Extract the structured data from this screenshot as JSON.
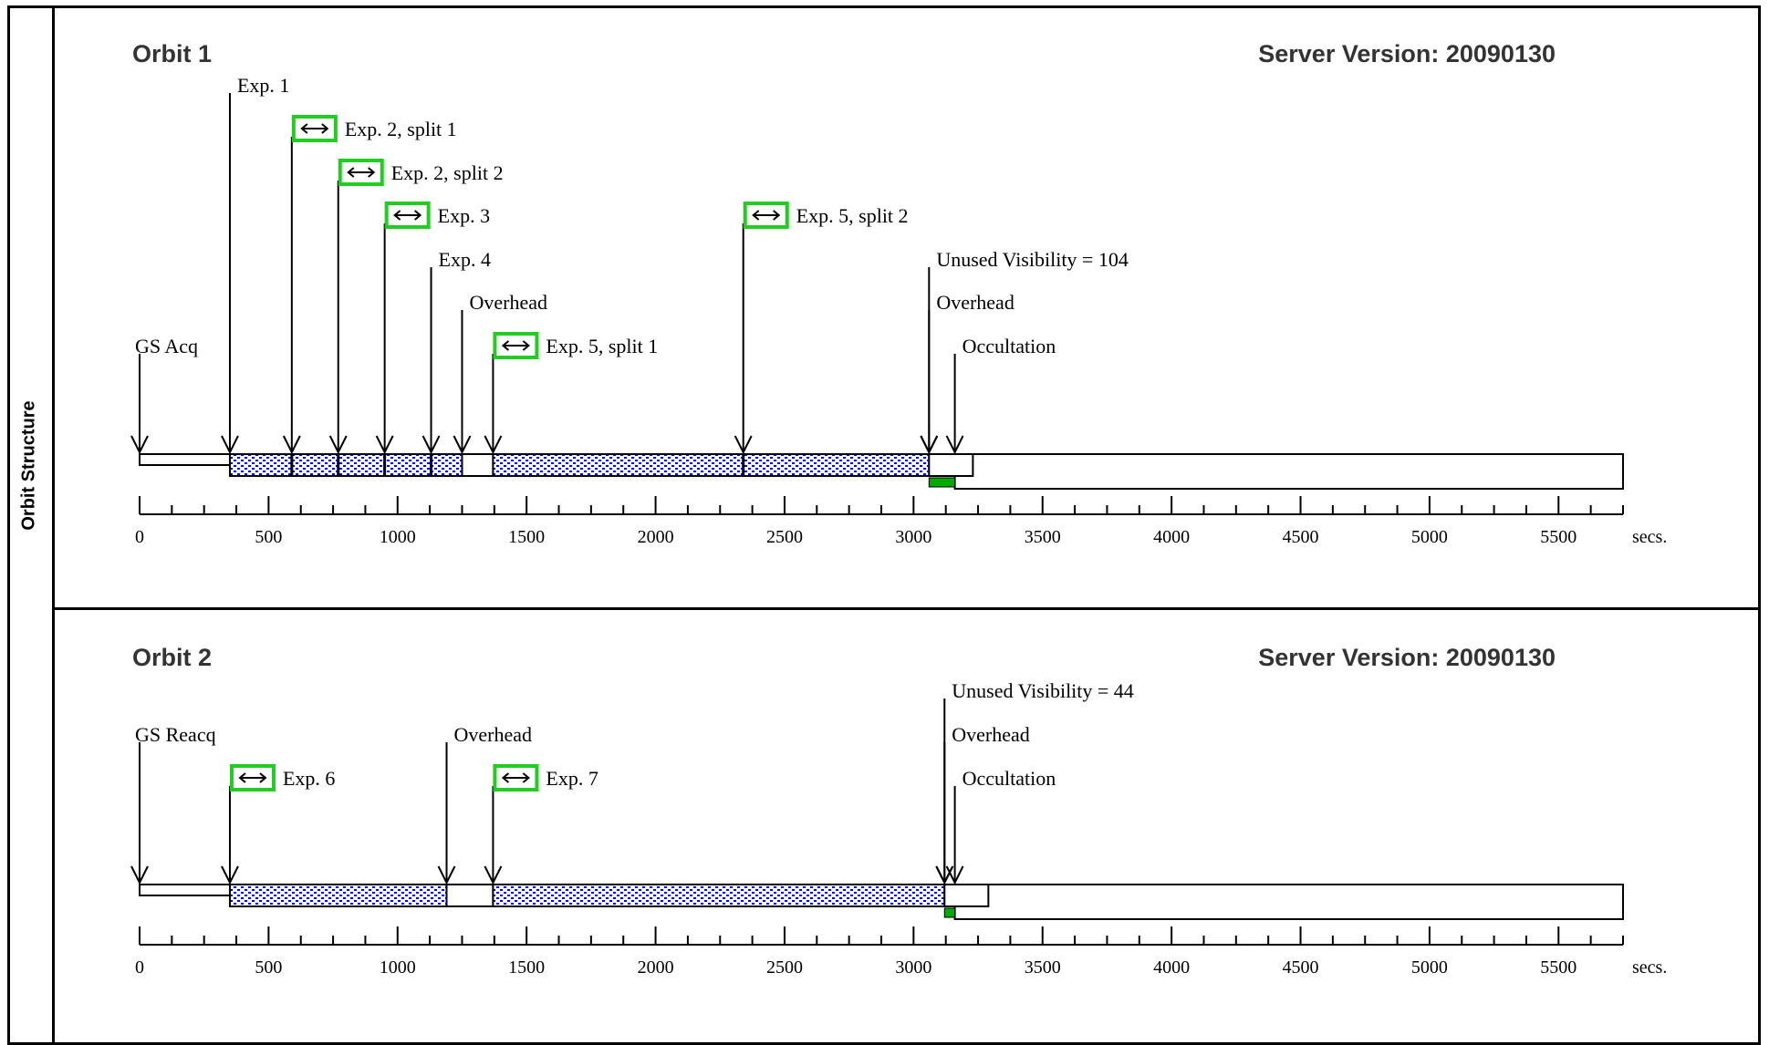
{
  "side_label": "Orbit Structure",
  "axis_unit": "secs.",
  "axis_ticks": [
    "0",
    "500",
    "1000",
    "1500",
    "2000",
    "2500",
    "3000",
    "3500",
    "4000",
    "4500",
    "5000",
    "5500"
  ],
  "colors": {
    "exposure_fill": "#0000ee",
    "occultation_fill": "#00aa00",
    "icon_border": "#22cc22"
  },
  "orbits": [
    {
      "title": "Orbit 1",
      "server_version": "Server Version: 20090130",
      "unused_visibility": 104,
      "annotations": [
        {
          "label": "GS Acq",
          "t": 0,
          "row": 6,
          "icon": false
        },
        {
          "label": "Exp. 1",
          "t": 350,
          "row": 0,
          "icon": false
        },
        {
          "label": "Exp. 2, split 1",
          "t": 590,
          "row": 1,
          "icon": true
        },
        {
          "label": "Exp. 2, split 2",
          "t": 770,
          "row": 2,
          "icon": true
        },
        {
          "label": "Exp. 3",
          "t": 950,
          "row": 3,
          "icon": true
        },
        {
          "label": "Exp. 4",
          "t": 1130,
          "row": 4,
          "icon": false
        },
        {
          "label": "Overhead",
          "t": 1250,
          "row": 5,
          "icon": false
        },
        {
          "label": "Exp. 5, split 1",
          "t": 1370,
          "row": 6,
          "icon": true
        },
        {
          "label": "Exp. 5, split 2",
          "t": 2340,
          "row": 3,
          "icon": true
        },
        {
          "label": "Unused Visibility = 104",
          "t": 3060,
          "row": 4,
          "icon": false
        },
        {
          "label": "Overhead",
          "t": 3060,
          "row": 5,
          "icon": false
        },
        {
          "label": "Occultation",
          "t": 3160,
          "row": 6,
          "icon": false
        }
      ],
      "segments": [
        {
          "kind": "guide-star",
          "start": 0,
          "end": 350
        },
        {
          "kind": "exposure",
          "start": 350,
          "end": 1250
        },
        {
          "kind": "overhead",
          "start": 1250,
          "end": 1370
        },
        {
          "kind": "exposure",
          "start": 1370,
          "end": 3060
        },
        {
          "kind": "overhead",
          "start": 3060,
          "end": 3230
        },
        {
          "kind": "occultation",
          "start": 3160,
          "end": 5750
        }
      ],
      "exposure_dividers": [
        590,
        770,
        950,
        1130,
        2340
      ],
      "unused_visibility_range": [
        3060,
        3160
      ]
    },
    {
      "title": "Orbit 2",
      "server_version": "Server Version: 20090130",
      "unused_visibility": 44,
      "annotations": [
        {
          "label": "GS Reacq",
          "t": 0,
          "row": 1,
          "icon": false
        },
        {
          "label": "Exp. 6",
          "t": 350,
          "row": 2,
          "icon": true
        },
        {
          "label": "Overhead",
          "t": 1190,
          "row": 1,
          "icon": false
        },
        {
          "label": "Exp. 7",
          "t": 1370,
          "row": 2,
          "icon": true
        },
        {
          "label": "Unused Visibility = 44",
          "t": 3120,
          "row": 0,
          "icon": false
        },
        {
          "label": "Overhead",
          "t": 3120,
          "row": 1,
          "icon": false
        },
        {
          "label": "Occultation",
          "t": 3160,
          "row": 2,
          "icon": false
        }
      ],
      "segments": [
        {
          "kind": "guide-star",
          "start": 0,
          "end": 350
        },
        {
          "kind": "exposure",
          "start": 350,
          "end": 1190
        },
        {
          "kind": "overhead",
          "start": 1190,
          "end": 1370
        },
        {
          "kind": "exposure",
          "start": 1370,
          "end": 3120
        },
        {
          "kind": "overhead",
          "start": 3120,
          "end": 3290
        },
        {
          "kind": "occultation",
          "start": 3160,
          "end": 5750
        }
      ],
      "exposure_dividers": [],
      "unused_visibility_range": [
        3120,
        3160
      ]
    }
  ]
}
